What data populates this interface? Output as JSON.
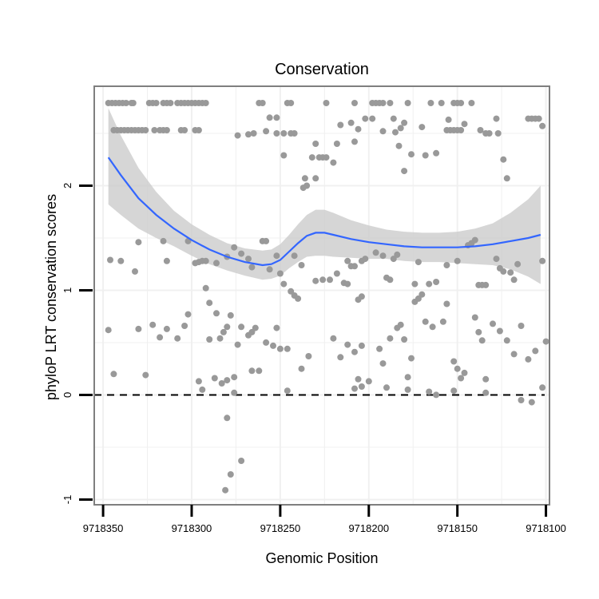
{
  "chart_data": {
    "type": "scatter",
    "title": "Conservation",
    "xlabel": "Genomic Position",
    "ylabel": "phyloP LRT conservation scores",
    "x_reversed": true,
    "xlim": [
      9718355,
      9718098
    ],
    "ylim": [
      -1.05,
      2.95
    ],
    "x_ticks": [
      9718350,
      9718300,
      9718250,
      9718200,
      9718150,
      9718100
    ],
    "x_tick_labels": [
      "9718350",
      "9718300",
      "9718250",
      "9718200",
      "9718150",
      "9718100"
    ],
    "y_ticks": [
      -1,
      0,
      1,
      2
    ],
    "y_tick_labels": [
      "-1",
      "0",
      "1",
      "2"
    ],
    "grid": true,
    "colors": {
      "points": "#999999",
      "smooth": "#3366ff",
      "band": "#cccccc",
      "panel_border": "#7f7f7f",
      "grid": "#f0f0f0"
    },
    "reference_line": {
      "y": 0,
      "style": "dashed"
    },
    "points": [
      [
        9718347,
        2.79
      ],
      [
        9718345,
        2.79
      ],
      [
        9718343,
        2.79
      ],
      [
        9718341,
        2.79
      ],
      [
        9718339,
        2.79
      ],
      [
        9718337,
        2.79
      ],
      [
        9718334,
        2.79
      ],
      [
        9718333,
        2.79
      ],
      [
        9718324,
        2.79
      ],
      [
        9718322,
        2.79
      ],
      [
        9718320,
        2.79
      ],
      [
        9718316,
        2.79
      ],
      [
        9718314,
        2.79
      ],
      [
        9718312,
        2.79
      ],
      [
        9718308,
        2.79
      ],
      [
        9718306,
        2.79
      ],
      [
        9718304,
        2.79
      ],
      [
        9718302,
        2.79
      ],
      [
        9718300,
        2.79
      ],
      [
        9718298,
        2.79
      ],
      [
        9718296,
        2.79
      ],
      [
        9718294,
        2.79
      ],
      [
        9718292,
        2.79
      ],
      [
        9718262,
        2.79
      ],
      [
        9718260,
        2.79
      ],
      [
        9718246,
        2.79
      ],
      [
        9718244,
        2.79
      ],
      [
        9718224,
        2.79
      ],
      [
        9718208,
        2.79
      ],
      [
        9718198,
        2.79
      ],
      [
        9718196,
        2.79
      ],
      [
        9718194,
        2.79
      ],
      [
        9718192,
        2.79
      ],
      [
        9718188,
        2.79
      ],
      [
        9718178,
        2.79
      ],
      [
        9718165,
        2.79
      ],
      [
        9718159,
        2.79
      ],
      [
        9718152,
        2.79
      ],
      [
        9718150,
        2.79
      ],
      [
        9718148,
        2.79
      ],
      [
        9718142,
        2.79
      ],
      [
        9718344,
        2.53
      ],
      [
        9718342,
        2.53
      ],
      [
        9718340,
        2.53
      ],
      [
        9718338,
        2.53
      ],
      [
        9718336,
        2.53
      ],
      [
        9718334,
        2.53
      ],
      [
        9718332,
        2.53
      ],
      [
        9718330,
        2.53
      ],
      [
        9718328,
        2.53
      ],
      [
        9718326,
        2.53
      ],
      [
        9718321,
        2.53
      ],
      [
        9718318,
        2.53
      ],
      [
        9718316,
        2.53
      ],
      [
        9718314,
        2.53
      ],
      [
        9718306,
        2.53
      ],
      [
        9718304,
        2.53
      ],
      [
        9718298,
        2.53
      ],
      [
        9718296,
        2.53
      ],
      [
        9718268,
        2.49
      ],
      [
        9718274,
        2.48
      ],
      [
        9718265,
        2.5
      ],
      [
        9718258,
        2.52
      ],
      [
        9718252,
        2.5
      ],
      [
        9718248,
        2.5
      ],
      [
        9718244,
        2.5
      ],
      [
        9718242,
        2.5
      ],
      [
        9718156,
        2.53
      ],
      [
        9718154,
        2.53
      ],
      [
        9718152,
        2.53
      ],
      [
        9718150,
        2.53
      ],
      [
        9718148,
        2.53
      ],
      [
        9718137,
        2.53
      ],
      [
        9718134,
        2.5
      ],
      [
        9718132,
        2.5
      ],
      [
        9718127,
        2.5
      ],
      [
        9718185,
        2.51
      ],
      [
        9718256,
        2.65
      ],
      [
        9718252,
        2.65
      ],
      [
        9718202,
        2.64
      ],
      [
        9718198,
        2.64
      ],
      [
        9718186,
        2.64
      ],
      [
        9718180,
        2.6
      ],
      [
        9718155,
        2.63
      ],
      [
        9718146,
        2.59
      ],
      [
        9718128,
        2.64
      ],
      [
        9718110,
        2.64
      ],
      [
        9718108,
        2.64
      ],
      [
        9718106,
        2.64
      ],
      [
        9718104,
        2.64
      ],
      [
        9718102,
        2.57
      ],
      [
        9718216,
        2.58
      ],
      [
        9718210,
        2.6
      ],
      [
        9718206,
        2.54
      ],
      [
        9718192,
        2.52
      ],
      [
        9718182,
        2.55
      ],
      [
        9718170,
        2.56
      ],
      [
        9718230,
        2.4
      ],
      [
        9718218,
        2.4
      ],
      [
        9718208,
        2.42
      ],
      [
        9718183,
        2.38
      ],
      [
        9718248,
        2.29
      ],
      [
        9718232,
        2.27
      ],
      [
        9718228,
        2.27
      ],
      [
        9718226,
        2.27
      ],
      [
        9718224,
        2.27
      ],
      [
        9718176,
        2.3
      ],
      [
        9718168,
        2.29
      ],
      [
        9718162,
        2.31
      ],
      [
        9718124,
        2.25
      ],
      [
        9718220,
        2.22
      ],
      [
        9718180,
        2.14
      ],
      [
        9718236,
        2.07
      ],
      [
        9718230,
        2.07
      ],
      [
        9718122,
        2.07
      ],
      [
        9718235,
        2.0
      ],
      [
        9718237,
        1.98
      ],
      [
        9718316,
        1.47
      ],
      [
        9718330,
        1.46
      ],
      [
        9718302,
        1.47
      ],
      [
        9718314,
        1.28
      ],
      [
        9718346,
        1.29
      ],
      [
        9718340,
        1.28
      ],
      [
        9718332,
        1.18
      ],
      [
        9718298,
        1.26
      ],
      [
        9718296,
        1.27
      ],
      [
        9718294,
        1.28
      ],
      [
        9718292,
        1.28
      ],
      [
        9718286,
        1.26
      ],
      [
        9718280,
        1.32
      ],
      [
        9718276,
        1.41
      ],
      [
        9718272,
        1.35
      ],
      [
        9718268,
        1.3
      ],
      [
        9718266,
        1.22
      ],
      [
        9718260,
        1.47
      ],
      [
        9718258,
        1.47
      ],
      [
        9718256,
        1.2
      ],
      [
        9718252,
        1.33
      ],
      [
        9718250,
        1.16
      ],
      [
        9718242,
        1.33
      ],
      [
        9718238,
        1.24
      ],
      [
        9718230,
        1.09
      ],
      [
        9718226,
        1.1
      ],
      [
        9718222,
        1.1
      ],
      [
        9718218,
        1.16
      ],
      [
        9718212,
        1.28
      ],
      [
        9718210,
        1.23
      ],
      [
        9718208,
        1.23
      ],
      [
        9718204,
        1.28
      ],
      [
        9718202,
        1.3
      ],
      [
        9718196,
        1.36
      ],
      [
        9718192,
        1.33
      ],
      [
        9718190,
        1.12
      ],
      [
        9718188,
        1.1
      ],
      [
        9718186,
        1.3
      ],
      [
        9718184,
        1.34
      ],
      [
        9718174,
        1.06
      ],
      [
        9718172,
        1.27
      ],
      [
        9718166,
        1.06
      ],
      [
        9718162,
        1.08
      ],
      [
        9718156,
        1.24
      ],
      [
        9718150,
        1.28
      ],
      [
        9718144,
        1.43
      ],
      [
        9718142,
        1.45
      ],
      [
        9718140,
        1.48
      ],
      [
        9718138,
        1.05
      ],
      [
        9718136,
        1.05
      ],
      [
        9718134,
        1.05
      ],
      [
        9718128,
        1.3
      ],
      [
        9718126,
        1.21
      ],
      [
        9718124,
        1.18
      ],
      [
        9718120,
        1.17
      ],
      [
        9718118,
        1.1
      ],
      [
        9718116,
        1.25
      ],
      [
        9718102,
        1.28
      ],
      [
        9718248,
        1.06
      ],
      [
        9718244,
        0.99
      ],
      [
        9718242,
        0.95
      ],
      [
        9718240,
        0.92
      ],
      [
        9718214,
        1.07
      ],
      [
        9718212,
        1.06
      ],
      [
        9718206,
        0.91
      ],
      [
        9718204,
        0.94
      ],
      [
        9718292,
        1.02
      ],
      [
        9718347,
        0.62
      ],
      [
        9718344,
        0.2
      ],
      [
        9718330,
        0.63
      ],
      [
        9718322,
        0.67
      ],
      [
        9718318,
        0.55
      ],
      [
        9718314,
        0.63
      ],
      [
        9718308,
        0.54
      ],
      [
        9718304,
        0.66
      ],
      [
        9718302,
        0.77
      ],
      [
        9718290,
        0.53
      ],
      [
        9718286,
        0.78
      ],
      [
        9718284,
        0.54
      ],
      [
        9718282,
        0.6
      ],
      [
        9718280,
        0.65
      ],
      [
        9718278,
        0.76
      ],
      [
        9718274,
        0.48
      ],
      [
        9718272,
        0.65
      ],
      [
        9718268,
        0.57
      ],
      [
        9718266,
        0.6
      ],
      [
        9718264,
        0.64
      ],
      [
        9718262,
        0.23
      ],
      [
        9718258,
        0.5
      ],
      [
        9718254,
        0.47
      ],
      [
        9718252,
        0.64
      ],
      [
        9718250,
        0.44
      ],
      [
        9718246,
        0.44
      ],
      [
        9718238,
        0.25
      ],
      [
        9718234,
        0.37
      ],
      [
        9718220,
        0.54
      ],
      [
        9718216,
        0.36
      ],
      [
        9718212,
        0.48
      ],
      [
        9718208,
        0.41
      ],
      [
        9718206,
        0.15
      ],
      [
        9718204,
        0.47
      ],
      [
        9718194,
        0.44
      ],
      [
        9718192,
        0.3
      ],
      [
        9718188,
        0.54
      ],
      [
        9718184,
        0.64
      ],
      [
        9718182,
        0.67
      ],
      [
        9718180,
        0.53
      ],
      [
        9718178,
        0.17
      ],
      [
        9718176,
        0.35
      ],
      [
        9718174,
        0.89
      ],
      [
        9718172,
        0.92
      ],
      [
        9718170,
        0.96
      ],
      [
        9718168,
        0.7
      ],
      [
        9718164,
        0.65
      ],
      [
        9718158,
        0.7
      ],
      [
        9718156,
        0.87
      ],
      [
        9718152,
        0.32
      ],
      [
        9718150,
        0.25
      ],
      [
        9718148,
        0.16
      ],
      [
        9718146,
        0.21
      ],
      [
        9718140,
        0.74
      ],
      [
        9718138,
        0.6
      ],
      [
        9718136,
        0.52
      ],
      [
        9718134,
        0.15
      ],
      [
        9718130,
        0.68
      ],
      [
        9718126,
        0.61
      ],
      [
        9718122,
        0.52
      ],
      [
        9718118,
        0.39
      ],
      [
        9718114,
        0.66
      ],
      [
        9718110,
        0.34
      ],
      [
        9718106,
        0.42
      ],
      [
        9718100,
        0.51
      ],
      [
        9718290,
        0.88
      ],
      [
        9718296,
        0.13
      ],
      [
        9718326,
        0.19
      ],
      [
        9718287,
        0.16
      ],
      [
        9718283,
        0.11
      ],
      [
        9718280,
        0.14
      ],
      [
        9718276,
        0.17
      ],
      [
        9718266,
        0.23
      ],
      [
        9718246,
        0.04
      ],
      [
        9718208,
        0.06
      ],
      [
        9718204,
        0.08
      ],
      [
        9718200,
        0.13
      ],
      [
        9718190,
        0.07
      ],
      [
        9718178,
        0.05
      ],
      [
        9718166,
        0.03
      ],
      [
        9718162,
        0.0
      ],
      [
        9718152,
        0.04
      ],
      [
        9718134,
        0.02
      ],
      [
        9718114,
        -0.05
      ],
      [
        9718108,
        -0.07
      ],
      [
        9718102,
        0.07
      ],
      [
        9718276,
        0.02
      ],
      [
        9718294,
        0.05
      ],
      [
        9718280,
        -0.22
      ],
      [
        9718272,
        -0.63
      ],
      [
        9718278,
        -0.76
      ],
      [
        9718281,
        -0.91
      ]
    ],
    "smooth_line": [
      [
        9718347,
        2.27
      ],
      [
        9718340,
        2.1
      ],
      [
        9718330,
        1.88
      ],
      [
        9718320,
        1.72
      ],
      [
        9718310,
        1.59
      ],
      [
        9718300,
        1.48
      ],
      [
        9718290,
        1.39
      ],
      [
        9718280,
        1.32
      ],
      [
        9718270,
        1.27
      ],
      [
        9718260,
        1.24
      ],
      [
        9718255,
        1.25
      ],
      [
        9718250,
        1.29
      ],
      [
        9718245,
        1.37
      ],
      [
        9718240,
        1.45
      ],
      [
        9718235,
        1.52
      ],
      [
        9718230,
        1.55
      ],
      [
        9718225,
        1.55
      ],
      [
        9718220,
        1.53
      ],
      [
        9718210,
        1.49
      ],
      [
        9718200,
        1.46
      ],
      [
        9718190,
        1.44
      ],
      [
        9718180,
        1.42
      ],
      [
        9718170,
        1.41
      ],
      [
        9718160,
        1.41
      ],
      [
        9718150,
        1.41
      ],
      [
        9718140,
        1.42
      ],
      [
        9718130,
        1.44
      ],
      [
        9718120,
        1.47
      ],
      [
        9718110,
        1.5
      ],
      [
        9718103,
        1.53
      ]
    ],
    "band_upper": [
      [
        9718347,
        2.74
      ],
      [
        9718340,
        2.48
      ],
      [
        9718330,
        2.17
      ],
      [
        9718320,
        1.94
      ],
      [
        9718310,
        1.76
      ],
      [
        9718300,
        1.63
      ],
      [
        9718290,
        1.53
      ],
      [
        9718280,
        1.45
      ],
      [
        9718270,
        1.4
      ],
      [
        9718260,
        1.38
      ],
      [
        9718255,
        1.39
      ],
      [
        9718250,
        1.44
      ],
      [
        9718245,
        1.53
      ],
      [
        9718240,
        1.63
      ],
      [
        9718235,
        1.72
      ],
      [
        9718230,
        1.77
      ],
      [
        9718225,
        1.77
      ],
      [
        9718220,
        1.74
      ],
      [
        9718210,
        1.67
      ],
      [
        9718200,
        1.62
      ],
      [
        9718190,
        1.58
      ],
      [
        9718180,
        1.56
      ],
      [
        9718170,
        1.55
      ],
      [
        9718160,
        1.55
      ],
      [
        9718150,
        1.56
      ],
      [
        9718140,
        1.59
      ],
      [
        9718130,
        1.64
      ],
      [
        9718120,
        1.74
      ],
      [
        9718110,
        1.87
      ],
      [
        9718103,
        2.0
      ]
    ],
    "band_lower": [
      [
        9718347,
        1.82
      ],
      [
        9718340,
        1.72
      ],
      [
        9718330,
        1.59
      ],
      [
        9718320,
        1.5
      ],
      [
        9718310,
        1.42
      ],
      [
        9718300,
        1.33
      ],
      [
        9718290,
        1.25
      ],
      [
        9718280,
        1.19
      ],
      [
        9718270,
        1.14
      ],
      [
        9718260,
        1.1
      ],
      [
        9718255,
        1.11
      ],
      [
        9718250,
        1.14
      ],
      [
        9718245,
        1.21
      ],
      [
        9718240,
        1.27
      ],
      [
        9718235,
        1.32
      ],
      [
        9718230,
        1.33
      ],
      [
        9718225,
        1.33
      ],
      [
        9718220,
        1.32
      ],
      [
        9718210,
        1.31
      ],
      [
        9718200,
        1.3
      ],
      [
        9718190,
        1.3
      ],
      [
        9718180,
        1.28
      ],
      [
        9718170,
        1.27
      ],
      [
        9718160,
        1.27
      ],
      [
        9718150,
        1.26
      ],
      [
        9718140,
        1.25
      ],
      [
        9718130,
        1.24
      ],
      [
        9718120,
        1.2
      ],
      [
        9718110,
        1.13
      ],
      [
        9718103,
        1.06
      ]
    ]
  }
}
